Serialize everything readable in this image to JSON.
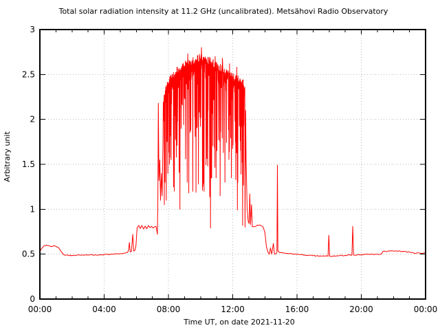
{
  "chart_data": {
    "type": "line",
    "title": "Total solar radiation intensity at 11.2 GHz (uncalibrated). Metsähovi Radio Observatory",
    "xlabel": "Time UT, on date 2021-11-20",
    "ylabel": "Arbitrary unit",
    "xlim_hours": [
      0,
      24
    ],
    "ylim": [
      0,
      3
    ],
    "grid": true,
    "legend": "none",
    "x_major_ticks_hours": [
      0,
      4,
      8,
      12,
      16,
      20,
      24
    ],
    "x_tick_labels": [
      "00:00",
      "04:00",
      "08:00",
      "12:00",
      "16:00",
      "20:00",
      "00:00"
    ],
    "x_minor_step_hours": 1,
    "y_major_ticks": [
      0,
      0.5,
      1,
      1.5,
      2,
      2.5,
      3
    ],
    "y_tick_labels": [
      "0",
      "0.5",
      "1",
      "1.5",
      "2",
      "2.5",
      "3"
    ],
    "colors": {
      "line": "#ff0000",
      "grid": "#b8b8b8",
      "frame": "#000000",
      "background": "#ffffff"
    },
    "series": [
      {
        "name": "solar-intensity-11.2GHz",
        "baseline_points": [
          [
            0.0,
            0.53
          ],
          [
            0.1,
            0.56
          ],
          [
            0.25,
            0.59
          ],
          [
            0.4,
            0.6
          ],
          [
            0.55,
            0.595
          ],
          [
            0.7,
            0.585
          ],
          [
            0.85,
            0.592
          ],
          [
            1.0,
            0.585
          ],
          [
            1.15,
            0.575
          ],
          [
            1.3,
            0.535
          ],
          [
            1.45,
            0.5
          ],
          [
            1.6,
            0.488
          ],
          [
            2.0,
            0.486
          ],
          [
            2.5,
            0.488
          ],
          [
            3.0,
            0.49
          ],
          [
            3.5,
            0.492
          ],
          [
            4.0,
            0.495
          ],
          [
            4.5,
            0.5
          ],
          [
            5.0,
            0.505
          ],
          [
            5.3,
            0.512
          ],
          [
            5.45,
            0.52
          ],
          [
            5.52,
            0.54
          ],
          [
            5.57,
            0.63
          ],
          [
            5.62,
            0.525
          ],
          [
            5.7,
            0.53
          ],
          [
            5.78,
            0.72
          ],
          [
            5.84,
            0.535
          ],
          [
            5.92,
            0.545
          ],
          [
            5.98,
            0.6
          ],
          [
            6.05,
            0.79
          ],
          [
            6.15,
            0.82
          ],
          [
            6.25,
            0.785
          ],
          [
            6.35,
            0.82
          ],
          [
            6.45,
            0.78
          ],
          [
            6.55,
            0.812
          ],
          [
            6.65,
            0.782
          ],
          [
            6.75,
            0.818
          ],
          [
            6.85,
            0.795
          ],
          [
            6.95,
            0.81
          ],
          [
            7.05,
            0.79
          ],
          [
            7.15,
            0.805
          ],
          [
            7.22,
            0.81
          ],
          [
            7.28,
            0.76
          ],
          [
            7.31,
            0.72
          ],
          [
            7.34,
            1.1
          ],
          [
            7.37,
            2.18
          ],
          [
            7.41,
            1.32
          ],
          [
            7.46,
            1.55
          ],
          [
            7.51,
            1.1
          ],
          [
            7.56,
            1.4
          ],
          [
            7.61,
            1.15
          ],
          [
            7.66,
            1.75
          ],
          [
            12.8,
            2.1
          ],
          [
            12.84,
            1.5
          ],
          [
            12.9,
            1.0
          ],
          [
            12.96,
            0.87
          ],
          [
            13.02,
            0.84
          ],
          [
            13.06,
            1.17
          ],
          [
            13.11,
            0.83
          ],
          [
            13.17,
            1.05
          ],
          [
            13.22,
            0.805
          ],
          [
            13.35,
            0.805
          ],
          [
            13.55,
            0.825
          ],
          [
            13.75,
            0.82
          ],
          [
            13.9,
            0.8
          ],
          [
            14.0,
            0.74
          ],
          [
            14.1,
            0.58
          ],
          [
            14.2,
            0.52
          ],
          [
            14.28,
            0.5
          ],
          [
            14.35,
            0.57
          ],
          [
            14.43,
            0.5
          ],
          [
            14.53,
            0.62
          ],
          [
            14.6,
            0.5
          ],
          [
            14.7,
            0.505
          ],
          [
            14.75,
            0.52
          ],
          [
            14.78,
            1.49
          ],
          [
            14.81,
            0.54
          ],
          [
            14.9,
            0.52
          ],
          [
            15.2,
            0.512
          ],
          [
            15.6,
            0.505
          ],
          [
            16.0,
            0.498
          ],
          [
            16.5,
            0.49
          ],
          [
            17.0,
            0.483
          ],
          [
            17.5,
            0.478
          ],
          [
            17.93,
            0.477
          ],
          [
            17.98,
            0.71
          ],
          [
            18.03,
            0.477
          ],
          [
            18.5,
            0.482
          ],
          [
            19.0,
            0.487
          ],
          [
            19.42,
            0.49
          ],
          [
            19.47,
            0.81
          ],
          [
            19.52,
            0.49
          ],
          [
            20.0,
            0.495
          ],
          [
            20.5,
            0.498
          ],
          [
            21.0,
            0.5
          ],
          [
            21.25,
            0.503
          ],
          [
            21.35,
            0.53
          ],
          [
            21.8,
            0.535
          ],
          [
            22.3,
            0.533
          ],
          [
            22.8,
            0.527
          ],
          [
            23.1,
            0.518
          ],
          [
            23.4,
            0.51
          ],
          [
            23.7,
            0.51
          ],
          [
            24.0,
            0.514
          ]
        ],
        "burst": {
          "t_start": 7.68,
          "t_end": 12.78,
          "sample_step_hours": 0.025,
          "envelope": [
            [
              7.68,
              2.2
            ],
            [
              7.8,
              2.32
            ],
            [
              8.0,
              2.42
            ],
            [
              8.3,
              2.5
            ],
            [
              8.7,
              2.56
            ],
            [
              9.0,
              2.6
            ],
            [
              9.4,
              2.64
            ],
            [
              9.8,
              2.67
            ],
            [
              10.0,
              2.7
            ],
            [
              10.3,
              2.67
            ],
            [
              10.7,
              2.63
            ],
            [
              11.0,
              2.6
            ],
            [
              11.3,
              2.56
            ],
            [
              11.6,
              2.51
            ],
            [
              12.0,
              2.47
            ],
            [
              12.3,
              2.44
            ],
            [
              12.6,
              2.41
            ],
            [
              12.78,
              2.35
            ]
          ],
          "envelope_jitter": 0.05,
          "depth_distribution": {
            "p_small": 0.45,
            "small_max": 0.18,
            "p_medium": 0.37,
            "medium_max": 0.9,
            "large_max": 1.6,
            "min_value": 0.8
          },
          "seed": 20211120,
          "up_spikes": [
            [
              10.05,
              2.8
            ],
            [
              9.2,
              2.73
            ],
            [
              10.9,
              2.7
            ],
            [
              11.35,
              2.68
            ],
            [
              11.8,
              2.62
            ],
            [
              12.25,
              2.58
            ]
          ],
          "down_spikes": [
            [
              7.72,
              1.05
            ],
            [
              7.78,
              1.3
            ],
            [
              7.85,
              1.1
            ],
            [
              7.95,
              1.4
            ],
            [
              8.05,
              1.5
            ],
            [
              8.3,
              1.25
            ],
            [
              8.7,
              1.0
            ],
            [
              9.15,
              1.3
            ],
            [
              9.5,
              1.2
            ],
            [
              9.85,
              1.28
            ],
            [
              10.2,
              1.2
            ],
            [
              10.6,
              0.79
            ],
            [
              10.67,
              1.35
            ],
            [
              11.2,
              1.15
            ],
            [
              11.5,
              1.3
            ],
            [
              11.9,
              1.35
            ],
            [
              12.3,
              1.3
            ],
            [
              12.6,
              0.82
            ]
          ]
        }
      }
    ]
  }
}
